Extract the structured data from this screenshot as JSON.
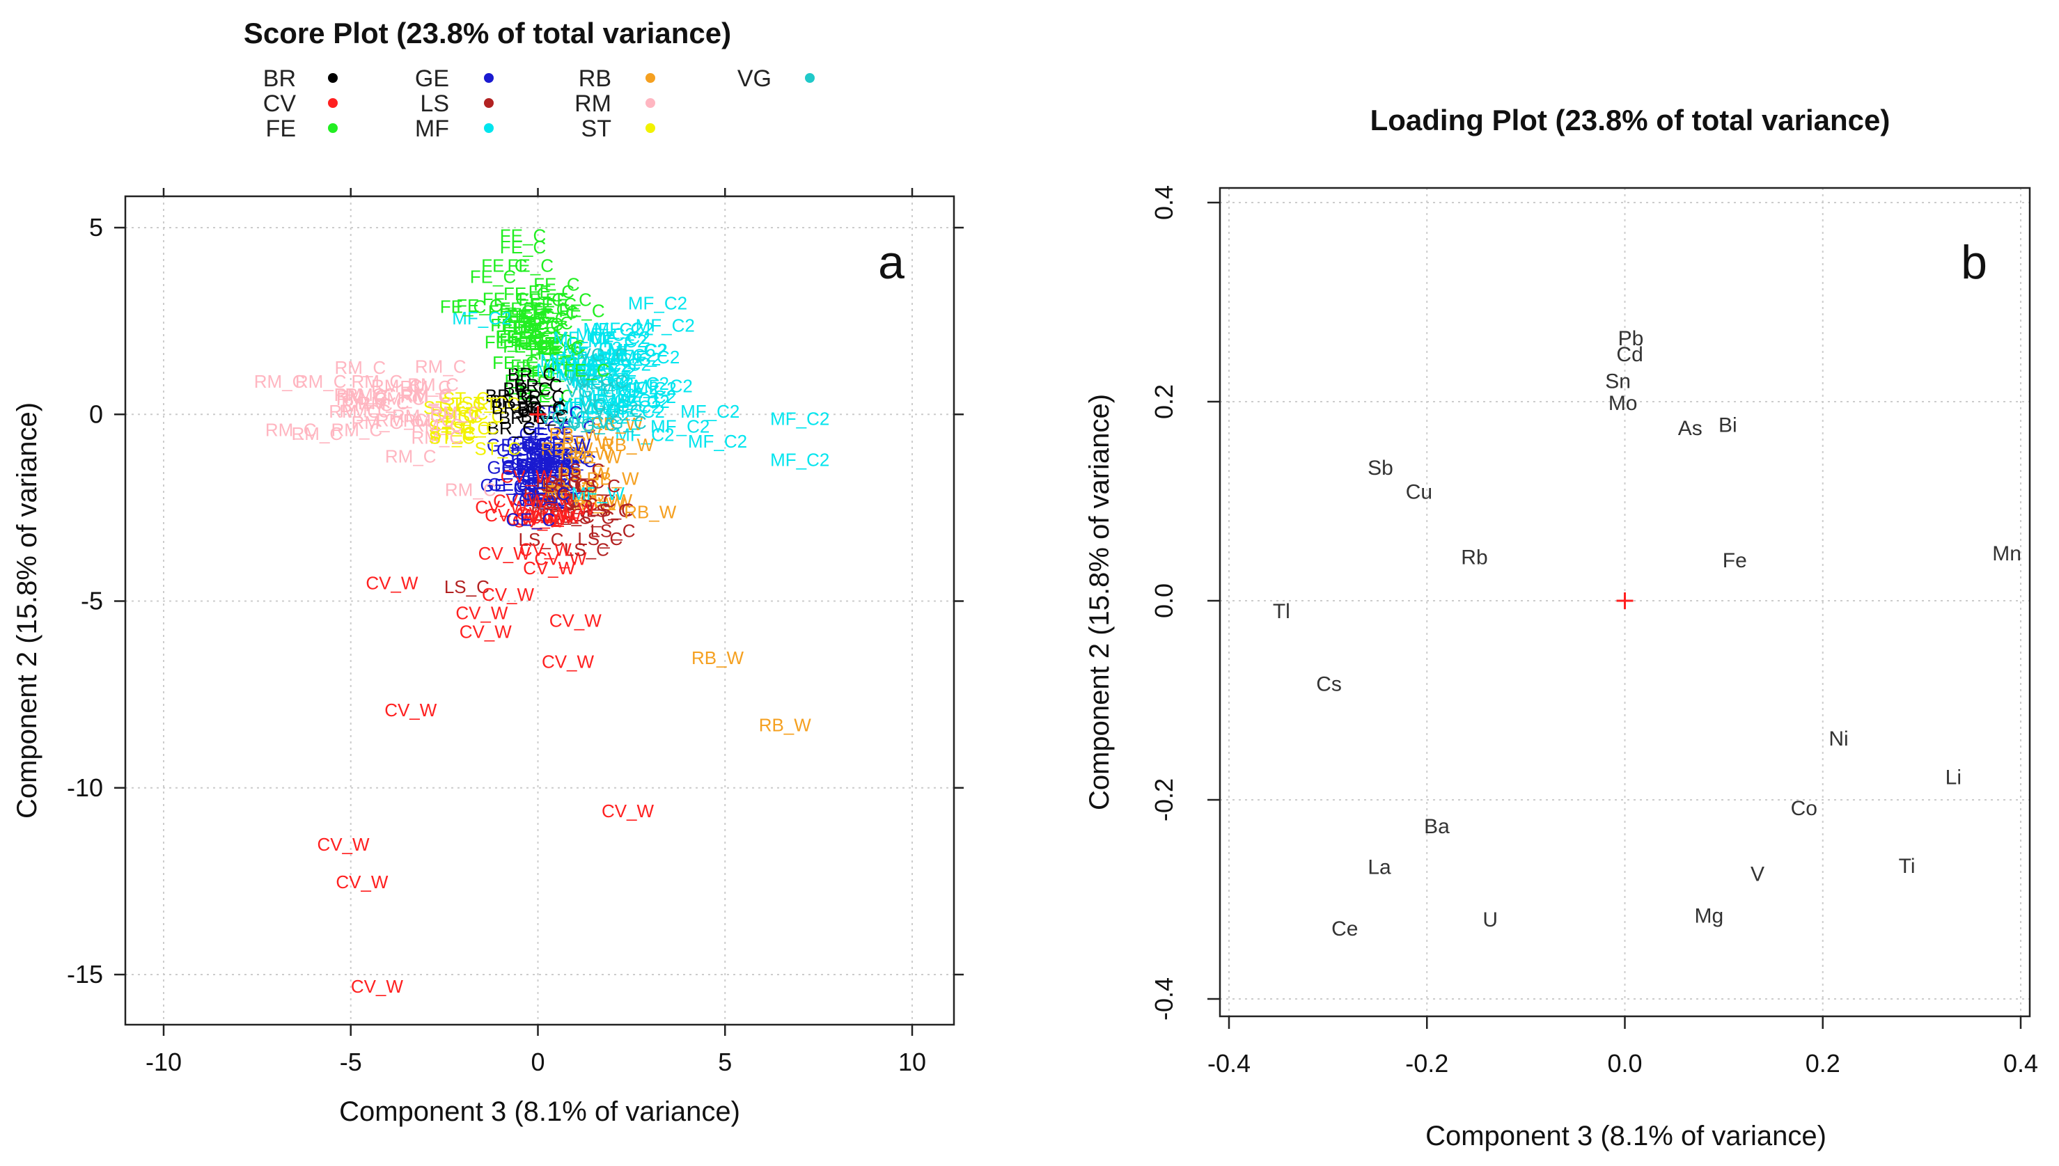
{
  "figure": {
    "panel_a_letter": "a",
    "panel_b_letter": "b"
  },
  "chart_data": [
    {
      "type": "scatter",
      "panel": "a",
      "title": "Score Plot (23.8% of total variance)",
      "xlabel": "Component 3 (8.1% of variance)",
      "ylabel": "Component 2 (15.8% of variance)",
      "xlim": [
        -10,
        10
      ],
      "ylim": [
        -15,
        5
      ],
      "xticks": [
        -10,
        -5,
        0,
        5,
        10
      ],
      "yticks": [
        5,
        0,
        -5,
        -10,
        -15
      ],
      "grid": true,
      "legend_position": "top",
      "legend": [
        {
          "label": "BR",
          "color": "#000000"
        },
        {
          "label": "CV",
          "color": "#ff2020"
        },
        {
          "label": "FE",
          "color": "#22ee22"
        },
        {
          "label": "GE",
          "color": "#1a1ad0"
        },
        {
          "label": "LS",
          "color": "#b22222"
        },
        {
          "label": "MF",
          "color": "#00e5ee"
        },
        {
          "label": "RB",
          "color": "#f5a020"
        },
        {
          "label": "RM",
          "color": "#ffb6c1"
        },
        {
          "label": "ST",
          "color": "#f2f200"
        },
        {
          "label": "VG",
          "color": "#20c9c9"
        }
      ],
      "origin_marker": {
        "x": 0,
        "y": 0,
        "color": "#ff2020"
      },
      "points": [
        {
          "label": "CV_W",
          "group": "CV",
          "x": -3.9,
          "y": -4.5,
          "color": "#ff2020"
        },
        {
          "label": "LS_C",
          "group": "LS",
          "x": -1.9,
          "y": -4.6,
          "color": "#b22222"
        },
        {
          "label": "CV_W",
          "group": "CV",
          "x": -0.8,
          "y": -4.8,
          "color": "#ff2020"
        },
        {
          "label": "CV_W",
          "group": "CV",
          "x": -1.5,
          "y": -5.3,
          "color": "#ff2020"
        },
        {
          "label": "CV_W",
          "group": "CV",
          "x": 1.0,
          "y": -5.5,
          "color": "#ff2020"
        },
        {
          "label": "CV_W",
          "group": "CV",
          "x": -1.4,
          "y": -5.8,
          "color": "#ff2020"
        },
        {
          "label": "CV_W",
          "group": "CV",
          "x": 0.8,
          "y": -6.6,
          "color": "#ff2020"
        },
        {
          "label": "RB_W",
          "group": "RB",
          "x": 4.8,
          "y": -6.5,
          "color": "#f5a020"
        },
        {
          "label": "CV_W",
          "group": "CV",
          "x": -3.4,
          "y": -7.9,
          "color": "#ff2020"
        },
        {
          "label": "RB_W",
          "group": "RB",
          "x": 6.6,
          "y": -8.3,
          "color": "#f5a020"
        },
        {
          "label": "CV_W",
          "group": "CV",
          "x": 2.4,
          "y": -10.6,
          "color": "#ff2020"
        },
        {
          "label": "CV_W",
          "group": "CV",
          "x": -5.2,
          "y": -11.5,
          "color": "#ff2020"
        },
        {
          "label": "CV_W",
          "group": "CV",
          "x": -4.7,
          "y": -12.5,
          "color": "#ff2020"
        },
        {
          "label": "CV_W",
          "group": "CV",
          "x": -4.3,
          "y": -15.3,
          "color": "#ff2020"
        },
        {
          "label": "MF_C2",
          "group": "MF",
          "x": 7.0,
          "y": -0.1,
          "color": "#00e5ee"
        },
        {
          "label": "MF_C2",
          "group": "MF",
          "x": 7.0,
          "y": -1.2,
          "color": "#00e5ee"
        },
        {
          "label": "MF_C2",
          "group": "MF",
          "x": 3.2,
          "y": 3.0,
          "color": "#00e5ee"
        },
        {
          "label": "MF_C2",
          "group": "MF",
          "x": 4.6,
          "y": 0.1,
          "color": "#00e5ee"
        },
        {
          "label": "MF_C2",
          "group": "MF",
          "x": 4.8,
          "y": -0.7,
          "color": "#00e5ee"
        },
        {
          "label": "MF_C2",
          "group": "MF",
          "x": 3.8,
          "y": -0.3,
          "color": "#00e5ee"
        },
        {
          "label": "MF_C2",
          "group": "MF",
          "x": 2.6,
          "y": 0.1,
          "color": "#00e5ee"
        },
        {
          "label": "MF_C2",
          "group": "MF",
          "x": 3.4,
          "y": 2.4,
          "color": "#00e5ee"
        },
        {
          "label": "MF_C2",
          "group": "MF",
          "x": 2.0,
          "y": 2.3,
          "color": "#00e5ee"
        },
        {
          "label": "MF_C2",
          "group": "MF",
          "x": -1.5,
          "y": 2.6,
          "color": "#00e5ee"
        },
        {
          "label": "MF_C1",
          "group": "MF",
          "x": 2.5,
          "y": 0.4,
          "color": "#00e5ee"
        },
        {
          "label": "MF_C2",
          "group": "MF",
          "x": 2.5,
          "y": 1.5,
          "color": "#00e5ee"
        },
        {
          "label": "MF_W",
          "group": "MF",
          "x": 1.6,
          "y": -2.1,
          "color": "#00e5ee"
        },
        {
          "label": "FE_C",
          "group": "FE",
          "x": -0.4,
          "y": 4.8,
          "color": "#22ee22"
        },
        {
          "label": "FE_C",
          "group": "FE",
          "x": -0.4,
          "y": 4.5,
          "color": "#22ee22"
        },
        {
          "label": "FE_C",
          "group": "FE",
          "x": -0.2,
          "y": 4.0,
          "color": "#22ee22"
        },
        {
          "label": "FE_C",
          "group": "FE",
          "x": -1.2,
          "y": 3.7,
          "color": "#22ee22"
        },
        {
          "label": "FE_C",
          "group": "FE",
          "x": 0.5,
          "y": 3.5,
          "color": "#22ee22"
        },
        {
          "label": "FE_C",
          "group": "FE",
          "x": -2.0,
          "y": 2.9,
          "color": "#22ee22"
        },
        {
          "label": "FE_C",
          "group": "FE",
          "x": -0.5,
          "y": 2.1,
          "color": "#22ee22"
        },
        {
          "label": "FE_C",
          "group": "FE",
          "x": 0.6,
          "y": 1.8,
          "color": "#22ee22"
        },
        {
          "label": "FE_C",
          "group": "FE",
          "x": -0.6,
          "y": 1.4,
          "color": "#22ee22"
        },
        {
          "label": "FE_C",
          "group": "FE",
          "x": 1.3,
          "y": 1.2,
          "color": "#22ee22"
        },
        {
          "label": "RM_C",
          "group": "RM",
          "x": -6.9,
          "y": 0.9,
          "color": "#ffb6c1"
        },
        {
          "label": "RM_C",
          "group": "RM",
          "x": -5.8,
          "y": 0.9,
          "color": "#ffb6c1"
        },
        {
          "label": "RM_C",
          "group": "RM",
          "x": -4.3,
          "y": 0.9,
          "color": "#ffb6c1"
        },
        {
          "label": "RM_C",
          "group": "RM",
          "x": -4.7,
          "y": 0.5,
          "color": "#ffb6c1"
        },
        {
          "label": "RM_C",
          "group": "RM",
          "x": -2.6,
          "y": 1.3,
          "color": "#ffb6c1"
        },
        {
          "label": "RM_C",
          "group": "RM",
          "x": -3.0,
          "y": 0.5,
          "color": "#ffb6c1"
        },
        {
          "label": "RM_C",
          "group": "RM",
          "x": -4.9,
          "y": 0.1,
          "color": "#ffb6c1"
        },
        {
          "label": "RM_C",
          "group": "RM",
          "x": -4.3,
          "y": -0.2,
          "color": "#ffb6c1"
        },
        {
          "label": "RM_C",
          "group": "RM",
          "x": -6.6,
          "y": -0.4,
          "color": "#ffb6c1"
        },
        {
          "label": "RM_C",
          "group": "RM",
          "x": -5.9,
          "y": -0.5,
          "color": "#ffb6c1"
        },
        {
          "label": "RM_C",
          "group": "RM",
          "x": -2.7,
          "y": -0.6,
          "color": "#ffb6c1"
        },
        {
          "label": "RM_C",
          "group": "RM",
          "x": -3.4,
          "y": -1.1,
          "color": "#ffb6c1"
        },
        {
          "label": "RM_C",
          "group": "RM",
          "x": -1.8,
          "y": -2.0,
          "color": "#ffb6c1"
        },
        {
          "label": "GE_C",
          "group": "GE",
          "x": -0.7,
          "y": -1.4,
          "color": "#1a1ad0"
        },
        {
          "label": "GE_C",
          "group": "GE",
          "x": 0.2,
          "y": -2.1,
          "color": "#1a1ad0"
        },
        {
          "label": "GE_C",
          "group": "GE",
          "x": -0.2,
          "y": -2.8,
          "color": "#1a1ad0"
        },
        {
          "label": "GE_W",
          "group": "GE",
          "x": 0.7,
          "y": -0.8,
          "color": "#1a1ad0"
        },
        {
          "label": "RB_W",
          "group": "RB",
          "x": 3.0,
          "y": -2.6,
          "color": "#f5a020"
        },
        {
          "label": "RB_W",
          "group": "RB",
          "x": 2.0,
          "y": -1.7,
          "color": "#f5a020"
        },
        {
          "label": "RB_W",
          "group": "RB",
          "x": 2.4,
          "y": -0.8,
          "color": "#f5a020"
        },
        {
          "label": "LS_C",
          "group": "LS",
          "x": 2.0,
          "y": -3.1,
          "color": "#b22222"
        },
        {
          "label": "LS_C",
          "group": "LS",
          "x": 1.3,
          "y": -3.6,
          "color": "#b22222"
        },
        {
          "label": "LS_C",
          "group": "LS",
          "x": 1.6,
          "y": -1.9,
          "color": "#b22222"
        },
        {
          "label": "CV_W",
          "group": "CV",
          "x": -0.9,
          "y": -3.7,
          "color": "#ff2020"
        },
        {
          "label": "CV_W",
          "group": "CV",
          "x": 0.3,
          "y": -4.1,
          "color": "#ff2020"
        },
        {
          "label": "CV_W",
          "group": "CV",
          "x": 0.2,
          "y": -3.6,
          "color": "#ff2020"
        },
        {
          "label": "CV_W",
          "group": "CV",
          "x": -0.5,
          "y": -2.3,
          "color": "#ff2020"
        },
        {
          "label": "ST_C",
          "group": "ST",
          "x": -2.3,
          "y": -0.6,
          "color": "#f2f200"
        },
        {
          "label": "ST_C",
          "group": "ST",
          "x": -1.1,
          "y": 0.3,
          "color": "#f2f200"
        },
        {
          "label": "BR_C",
          "group": "BR",
          "x": 0.0,
          "y": 0.8,
          "color": "#000000"
        },
        {
          "label": "BR_C",
          "group": "BR",
          "x": -0.6,
          "y": 0.2,
          "color": "#000000"
        }
      ]
    },
    {
      "type": "scatter",
      "panel": "b",
      "title": "Loading Plot (23.8% of total variance)",
      "xlabel": "Component 3 (8.1% of variance)",
      "ylabel": "Component 2 (15.8% of variance)",
      "xlim": [
        -0.4,
        0.4
      ],
      "ylim": [
        -0.4,
        0.4
      ],
      "xticks": [
        -0.4,
        -0.2,
        0.0,
        0.2,
        0.4
      ],
      "xtick_labels": [
        "-0.4",
        "-0.2",
        "0.0",
        "0.2",
        "0.4"
      ],
      "yticks": [
        0.4,
        0.2,
        0.0,
        -0.2,
        -0.4
      ],
      "ytick_labels": [
        "0.4",
        "0.2",
        "0.0",
        "-0.2",
        "-0.4"
      ],
      "grid": true,
      "origin_marker": {
        "x": 0,
        "y": 0,
        "color": "#ff2020"
      },
      "points": [
        {
          "label": "Pb",
          "x": 0.006,
          "y": 0.265
        },
        {
          "label": "Cd",
          "x": 0.005,
          "y": 0.249
        },
        {
          "label": "Sn",
          "x": -0.007,
          "y": 0.222
        },
        {
          "label": "Mo",
          "x": -0.002,
          "y": 0.2
        },
        {
          "label": "As",
          "x": 0.066,
          "y": 0.175
        },
        {
          "label": "Bi",
          "x": 0.104,
          "y": 0.178
        },
        {
          "label": "Sb",
          "x": -0.247,
          "y": 0.135
        },
        {
          "label": "Cu",
          "x": -0.208,
          "y": 0.111
        },
        {
          "label": "Rb",
          "x": -0.152,
          "y": 0.045
        },
        {
          "label": "Fe",
          "x": 0.111,
          "y": 0.042
        },
        {
          "label": "Mn",
          "x": 0.386,
          "y": 0.049
        },
        {
          "label": "Tl",
          "x": -0.347,
          "y": -0.009
        },
        {
          "label": "Cs",
          "x": -0.299,
          "y": -0.082
        },
        {
          "label": "Ni",
          "x": 0.216,
          "y": -0.137
        },
        {
          "label": "Li",
          "x": 0.332,
          "y": -0.176
        },
        {
          "label": "Co",
          "x": 0.181,
          "y": -0.207
        },
        {
          "label": "Ba",
          "x": -0.19,
          "y": -0.225
        },
        {
          "label": "Ti",
          "x": 0.285,
          "y": -0.265
        },
        {
          "label": "La",
          "x": -0.248,
          "y": -0.266
        },
        {
          "label": "V",
          "x": 0.134,
          "y": -0.273
        },
        {
          "label": "Mg",
          "x": 0.085,
          "y": -0.315
        },
        {
          "label": "U",
          "x": -0.136,
          "y": -0.319
        },
        {
          "label": "Ce",
          "x": -0.283,
          "y": -0.328
        }
      ]
    }
  ]
}
